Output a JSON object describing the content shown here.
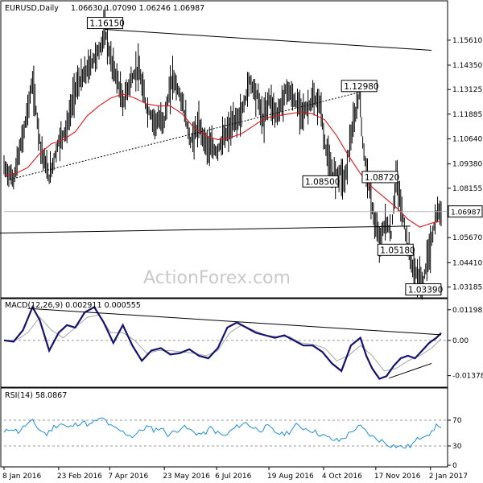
{
  "chart_data": [
    {
      "type": "line",
      "title": "EURUSD,Daily",
      "ohlc_header": "1.06630 1.07090 1.06246 1.06987",
      "watermark": "ActionForex.com",
      "x_tick_labels": [
        "8 Jan 2016",
        "23 Feb 2016",
        "7 Apr 2016",
        "23 May 2016",
        "6 Jul 2016",
        "19 Aug 2016",
        "4 Oct 2016",
        "17 Nov 2016",
        "2 Jan 2017"
      ],
      "x_ticks_day": [
        0,
        46,
        89,
        135,
        179,
        223,
        269,
        313,
        359
      ],
      "y_tick_labels": [
        "1.15610",
        "1.14350",
        "1.13125",
        "1.11885",
        "1.10640",
        "1.09380",
        "1.08155",
        "1.06915",
        "1.05670",
        "1.04410",
        "1.03185"
      ],
      "ylim": [
        1.0268,
        1.1755
      ],
      "last_price": "1.06987",
      "last_price_value": 1.06987,
      "price_series": {
        "days": [
          0,
          8,
          16,
          24,
          31,
          38,
          46,
          53,
          60,
          67,
          74,
          81,
          85,
          89,
          96,
          100,
          106,
          113,
          120,
          127,
          135,
          142,
          150,
          157,
          164,
          171,
          179,
          186,
          193,
          200,
          207,
          214,
          218,
          223,
          230,
          238,
          246,
          253,
          260,
          267,
          269,
          276,
          283,
          287,
          291,
          295,
          299,
          303,
          307,
          310,
          313,
          317,
          321,
          326,
          330,
          335,
          340,
          345,
          349,
          353,
          356,
          359,
          362,
          365,
          368
        ],
        "close": [
          1.092,
          1.086,
          1.108,
          1.135,
          1.102,
          1.087,
          1.105,
          1.112,
          1.132,
          1.138,
          1.145,
          1.152,
          1.1615,
          1.148,
          1.135,
          1.124,
          1.135,
          1.142,
          1.122,
          1.115,
          1.116,
          1.138,
          1.125,
          1.105,
          1.113,
          1.103,
          1.1,
          1.108,
          1.114,
          1.119,
          1.136,
          1.127,
          1.115,
          1.127,
          1.118,
          1.132,
          1.124,
          1.12,
          1.126,
          1.123,
          1.107,
          1.088,
          1.09,
          1.085,
          1.104,
          1.115,
          1.1298,
          1.098,
          1.085,
          1.072,
          1.061,
          1.055,
          1.065,
          1.058,
          1.0872,
          1.07,
          1.0518,
          1.04,
          1.037,
          1.0339,
          1.045,
          1.052,
          1.062,
          1.069,
          1.06987
        ]
      },
      "ma_series": {
        "days": [
          0,
          10,
          20,
          30,
          40,
          50,
          60,
          70,
          80,
          90,
          100,
          110,
          120,
          130,
          140,
          150,
          160,
          170,
          180,
          190,
          200,
          210,
          220,
          230,
          240,
          250,
          260,
          270,
          280,
          290,
          300,
          310,
          320,
          330,
          340,
          350,
          360,
          368
        ],
        "value": [
          1.088,
          1.089,
          1.092,
          1.099,
          1.104,
          1.106,
          1.11,
          1.118,
          1.123,
          1.127,
          1.129,
          1.127,
          1.124,
          1.123,
          1.123,
          1.119,
          1.112,
          1.108,
          1.106,
          1.107,
          1.109,
          1.113,
          1.117,
          1.118,
          1.119,
          1.12,
          1.119,
          1.116,
          1.108,
          1.098,
          1.089,
          1.082,
          1.077,
          1.072,
          1.066,
          1.062,
          1.064,
          1.065
        ]
      },
      "labeled_levels": [
        {
          "label": "1.16150",
          "day": 85,
          "value": 1.1615
        },
        {
          "label": "1.12980",
          "day": 299,
          "value": 1.1298
        },
        {
          "label": "1.08500",
          "day": 284,
          "value": 1.085
        },
        {
          "label": "1.08720",
          "day": 330,
          "value": 1.0872
        },
        {
          "label": "1.05180",
          "day": 335,
          "value": 1.0518
        },
        {
          "label": "1.03390",
          "day": 353,
          "value": 1.0339
        }
      ],
      "trend_lines": [
        {
          "from_day": 85,
          "from_value": 1.1615,
          "to_day": 360,
          "to_value": 1.151,
          "style": "solid"
        },
        {
          "from_day": -5,
          "from_value": 1.059,
          "to_day": 342,
          "to_value": 1.0625,
          "style": "solid"
        },
        {
          "from_day": 5,
          "from_value": 1.086,
          "to_day": 299,
          "to_value": 1.1298,
          "style": "dotted"
        }
      ]
    },
    {
      "type": "line",
      "title": "MACD(12,26,9) 0.002911 0.000555",
      "y_tick_labels": [
        "0.011982",
        "0.00",
        "-0.013788"
      ],
      "ylim": [
        -0.018,
        0.016
      ],
      "macd_series": {
        "days": [
          0,
          8,
          16,
          24,
          30,
          38,
          46,
          53,
          60,
          68,
          76,
          84,
          92,
          100,
          108,
          116,
          124,
          132,
          140,
          148,
          156,
          164,
          172,
          180,
          188,
          196,
          204,
          212,
          220,
          228,
          236,
          244,
          252,
          260,
          268,
          276,
          284,
          292,
          300,
          305,
          310,
          316,
          322,
          328,
          334,
          340,
          346,
          352,
          358,
          364,
          368
        ],
        "value": [
          0.0,
          -0.0005,
          0.004,
          0.013,
          0.008,
          -0.004,
          0.003,
          0.006,
          0.005,
          0.011,
          0.013,
          0.007,
          -0.001,
          0.006,
          -0.002,
          -0.008,
          -0.004,
          -0.003,
          -0.0055,
          -0.005,
          -0.0035,
          -0.006,
          -0.007,
          -0.003,
          0.005,
          0.007,
          0.005,
          0.003,
          0.002,
          0.001,
          0.002,
          0.0,
          -0.002,
          -0.002,
          -0.0045,
          -0.009,
          -0.012,
          -0.002,
          0.001,
          -0.006,
          -0.011,
          -0.015,
          -0.014,
          -0.01,
          -0.007,
          -0.006,
          -0.007,
          -0.004,
          -0.001,
          0.001,
          0.0029
        ]
      },
      "signal_series": {
        "days": [
          0,
          10,
          20,
          30,
          40,
          50,
          60,
          70,
          80,
          90,
          100,
          110,
          120,
          130,
          140,
          150,
          160,
          170,
          180,
          190,
          200,
          210,
          220,
          230,
          240,
          250,
          260,
          270,
          280,
          290,
          300,
          310,
          320,
          330,
          340,
          350,
          360,
          368
        ],
        "value": [
          0.0,
          0.0,
          0.003,
          0.009,
          0.004,
          0.001,
          0.005,
          0.009,
          0.01,
          0.003,
          0.003,
          0.0,
          -0.005,
          -0.004,
          -0.004,
          -0.0045,
          -0.005,
          -0.006,
          -0.004,
          0.003,
          0.006,
          0.004,
          0.002,
          0.0015,
          0.0015,
          -0.001,
          -0.0015,
          -0.003,
          -0.008,
          -0.006,
          -0.002,
          -0.006,
          -0.012,
          -0.011,
          -0.008,
          -0.006,
          -0.003,
          0.0006
        ]
      },
      "trend_lines": [
        {
          "from_day": 20,
          "from_value": 0.0125,
          "to_day": 368,
          "to_value": 0.0022,
          "style": "solid"
        },
        {
          "from_day": 324,
          "from_value": -0.0148,
          "to_day": 360,
          "to_value": -0.009,
          "style": "solid"
        }
      ]
    },
    {
      "type": "line",
      "title": "RSI(14) 58.0867",
      "y_tick_labels": [
        "70",
        "30",
        "0"
      ],
      "ylim": [
        0,
        100
      ],
      "dashed_levels": [
        70,
        30
      ],
      "rsi_series": {
        "days": [
          0,
          6,
          12,
          18,
          24,
          30,
          36,
          42,
          48,
          54,
          60,
          66,
          72,
          78,
          84,
          90,
          96,
          102,
          108,
          114,
          120,
          126,
          132,
          138,
          144,
          150,
          156,
          162,
          168,
          174,
          180,
          186,
          192,
          198,
          204,
          210,
          216,
          222,
          228,
          234,
          240,
          246,
          252,
          258,
          264,
          270,
          276,
          282,
          288,
          294,
          300,
          306,
          312,
          318,
          324,
          330,
          336,
          342,
          348,
          354,
          360,
          364,
          368
        ],
        "value": [
          50,
          58,
          52,
          62,
          68,
          55,
          48,
          60,
          65,
          58,
          63,
          68,
          62,
          70,
          72,
          60,
          55,
          50,
          45,
          52,
          60,
          55,
          58,
          48,
          52,
          60,
          55,
          50,
          48,
          58,
          50,
          45,
          55,
          62,
          66,
          58,
          55,
          60,
          52,
          48,
          52,
          62,
          58,
          55,
          50,
          45,
          40,
          38,
          45,
          55,
          60,
          50,
          42,
          38,
          32,
          30,
          28,
          30,
          40,
          48,
          50,
          62,
          58.09
        ]
      }
    }
  ]
}
